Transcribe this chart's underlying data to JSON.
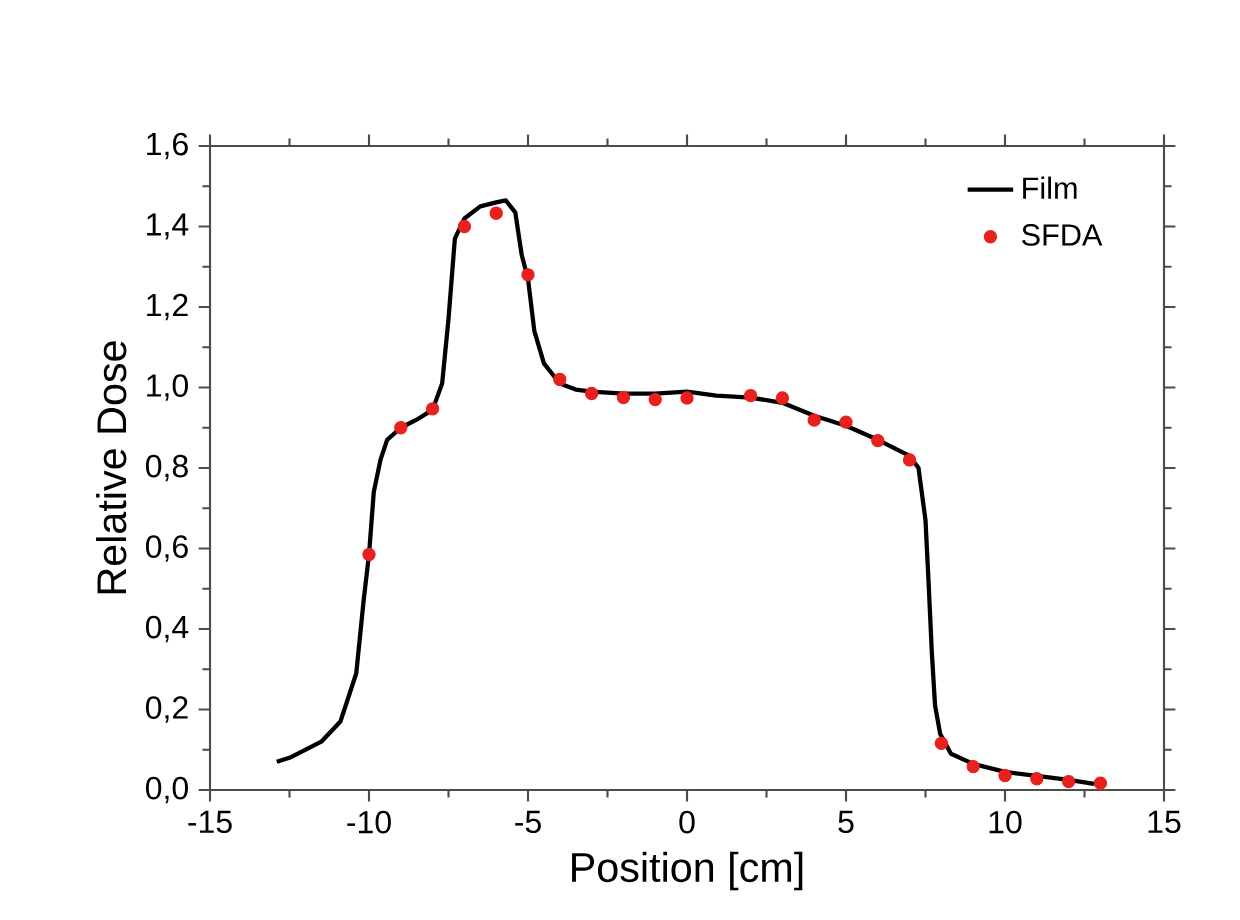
{
  "chart_data": {
    "type": "line",
    "xlabel": "Position [cm]",
    "ylabel": "Relative Dose",
    "xlim": [
      -15,
      15
    ],
    "xticks": [
      -15,
      -10,
      -5,
      0,
      5,
      10,
      15
    ],
    "ylim": [
      0,
      1.6
    ],
    "yticks": [
      {
        "value": 0,
        "label": "0,0"
      },
      {
        "value": 0.2,
        "label": "0,2"
      },
      {
        "value": 0.4,
        "label": "0,4"
      },
      {
        "value": 0.6,
        "label": "0,6"
      },
      {
        "value": 0.8,
        "label": "0,8"
      },
      {
        "value": 1.0,
        "label": "1,0"
      },
      {
        "value": 1.2,
        "label": "1,2"
      },
      {
        "value": 1.4,
        "label": "1,4"
      },
      {
        "value": 1.6,
        "label": "1,6"
      }
    ],
    "legend": "top right",
    "grid": false,
    "series": [
      {
        "name": "Film",
        "color": "#000000",
        "marker": "none",
        "x": [
          -12.9,
          -12.5,
          -12,
          -11.5,
          -10.9,
          -10.4,
          -10.17,
          -10,
          -9.85,
          -9.64,
          -9.43,
          -9,
          -8.5,
          -8,
          -7.7,
          -7.5,
          -7.3,
          -7,
          -6.5,
          -6,
          -5.7,
          -5.4,
          -5.2,
          -5,
          -4.8,
          -4.5,
          -4,
          -3.5,
          -3,
          -2,
          -1,
          0,
          0.92,
          2,
          3,
          4,
          5,
          6,
          7,
          7.28,
          7.5,
          7.6,
          7.7,
          7.8,
          7.96,
          8.3,
          9,
          10,
          11,
          12,
          12.8
        ],
        "values": [
          0.07,
          0.08,
          0.1,
          0.12,
          0.17,
          0.29,
          0.47,
          0.585,
          0.74,
          0.82,
          0.87,
          0.9,
          0.92,
          0.945,
          1.01,
          1.17,
          1.37,
          1.42,
          1.45,
          1.46,
          1.465,
          1.435,
          1.33,
          1.27,
          1.14,
          1.06,
          1.01,
          0.995,
          0.99,
          0.985,
          0.985,
          0.99,
          0.98,
          0.975,
          0.962,
          0.93,
          0.905,
          0.87,
          0.83,
          0.8,
          0.67,
          0.51,
          0.34,
          0.21,
          0.14,
          0.09,
          0.065,
          0.045,
          0.035,
          0.025,
          0.015
        ]
      },
      {
        "name": "SFDA",
        "type": "scatter",
        "color": "#e8201e",
        "marker": "circle",
        "x": [
          -10,
          -9,
          -8,
          -7,
          -6,
          -5,
          -4,
          -3,
          -2,
          -1,
          0,
          2,
          3,
          4,
          5,
          6,
          7,
          8,
          9,
          10,
          11,
          12,
          13
        ],
        "values": [
          0.585,
          0.9,
          0.947,
          1.4,
          1.433,
          1.28,
          1.02,
          0.985,
          0.975,
          0.97,
          0.974,
          0.98,
          0.974,
          0.919,
          0.914,
          0.868,
          0.82,
          0.116,
          0.058,
          0.036,
          0.028,
          0.021,
          0.017
        ]
      }
    ]
  }
}
